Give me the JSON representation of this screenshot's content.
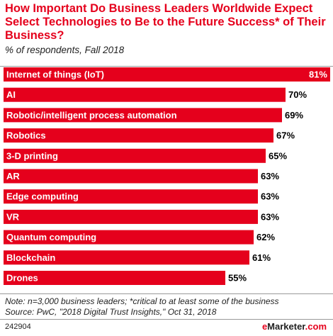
{
  "header": {
    "title": "How Important Do Business Leaders Worldwide Expect Select Technologies to Be to the Future Success* of Their Business?",
    "subtitle": "% of respondents, Fall 2018"
  },
  "footer": {
    "note": "Note: n=3,000 business leaders; *critical to at least some of the business",
    "source": "Source: PwC, \"2018 Digital Trust Insights,\" Oct 31, 2018",
    "chart_code": "242904",
    "brand_e": "e",
    "brand_rest": "Marketer",
    "brand_domain": ".com"
  },
  "colors": {
    "accent": "#e5001c",
    "text": "#222222"
  },
  "chart_data": {
    "type": "bar",
    "orientation": "horizontal",
    "title": "How Important Do Business Leaders Worldwide Expect Select Technologies to Be to the Future Success* of Their Business?",
    "subtitle": "% of respondents, Fall 2018",
    "categories": [
      "Internet of things (IoT)",
      "AI",
      "Robotic/intelligent process automation",
      "Robotics",
      "3-D printing",
      "AR",
      "Edge computing",
      "VR",
      "Quantum computing",
      "Blockchain",
      "Drones"
    ],
    "values": [
      81,
      70,
      69,
      67,
      65,
      63,
      63,
      63,
      62,
      61,
      55
    ],
    "value_labels": [
      "81%",
      "70%",
      "69%",
      "67%",
      "65%",
      "63%",
      "63%",
      "63%",
      "62%",
      "61%",
      "55%"
    ],
    "unit": "%",
    "xlim": [
      0,
      81
    ],
    "bar_color": "#e5001c",
    "grid": false,
    "legend": "none"
  }
}
